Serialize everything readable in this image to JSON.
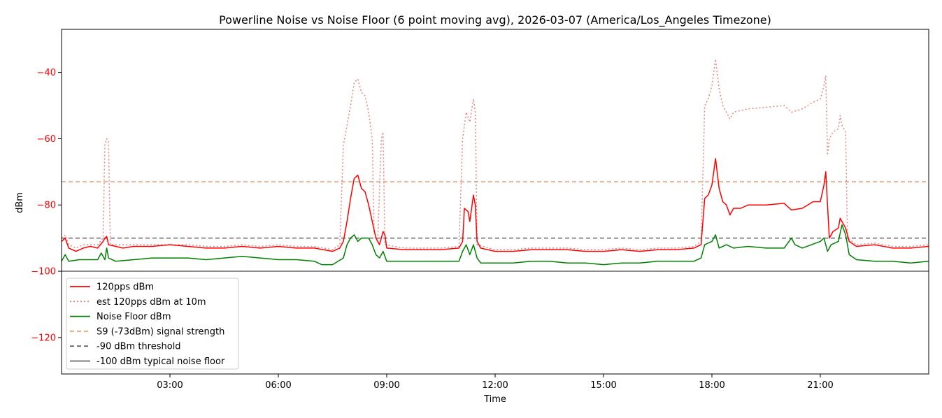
{
  "chart_data": {
    "type": "line",
    "title": "Powerline Noise vs Noise Floor (6 point moving avg), 2026-03-07 (America/Los_Angeles Timezone)",
    "xlabel": "Time",
    "ylabel": "dBm",
    "xlim_hours": [
      0,
      24
    ],
    "ylim": [
      -131,
      -27
    ],
    "x_ticks": [
      {
        "hour": 3,
        "label": "03:00"
      },
      {
        "hour": 6,
        "label": "06:00"
      },
      {
        "hour": 9,
        "label": "09:00"
      },
      {
        "hour": 12,
        "label": "12:00"
      },
      {
        "hour": 15,
        "label": "15:00"
      },
      {
        "hour": 18,
        "label": "18:00"
      },
      {
        "hour": 21,
        "label": "21:00"
      }
    ],
    "y_ticks": [
      {
        "value": -40,
        "label": "−40"
      },
      {
        "value": -60,
        "label": "−60"
      },
      {
        "value": -80,
        "label": "−80"
      },
      {
        "value": -100,
        "label": "−100"
      },
      {
        "value": -120,
        "label": "−120"
      }
    ],
    "ytick_color": "#ff0000",
    "legend_position": "lower-left",
    "grid": false,
    "series": [
      {
        "name": "120pps dBm",
        "color": "#ff0000",
        "style": "solid",
        "points": [
          [
            0.0,
            -91
          ],
          [
            0.1,
            -90
          ],
          [
            0.2,
            -93
          ],
          [
            0.4,
            -94
          ],
          [
            0.6,
            -93
          ],
          [
            0.8,
            -92.5
          ],
          [
            1.0,
            -93
          ],
          [
            1.15,
            -91
          ],
          [
            1.2,
            -90
          ],
          [
            1.25,
            -89.5
          ],
          [
            1.3,
            -92
          ],
          [
            1.5,
            -92.5
          ],
          [
            1.7,
            -93
          ],
          [
            2.0,
            -92.5
          ],
          [
            2.5,
            -92.5
          ],
          [
            3.0,
            -92
          ],
          [
            3.5,
            -92.5
          ],
          [
            4.0,
            -93
          ],
          [
            4.5,
            -93
          ],
          [
            5.0,
            -92.5
          ],
          [
            5.5,
            -93
          ],
          [
            6.0,
            -92.5
          ],
          [
            6.5,
            -93
          ],
          [
            7.0,
            -93
          ],
          [
            7.5,
            -94
          ],
          [
            7.7,
            -93
          ],
          [
            7.8,
            -91
          ],
          [
            7.9,
            -85
          ],
          [
            8.0,
            -78
          ],
          [
            8.1,
            -72
          ],
          [
            8.2,
            -71
          ],
          [
            8.3,
            -75
          ],
          [
            8.4,
            -76
          ],
          [
            8.5,
            -80
          ],
          [
            8.6,
            -85
          ],
          [
            8.7,
            -90
          ],
          [
            8.8,
            -92
          ],
          [
            8.9,
            -88
          ],
          [
            8.95,
            -89
          ],
          [
            9.0,
            -93
          ],
          [
            9.5,
            -93.5
          ],
          [
            10.0,
            -93.5
          ],
          [
            10.5,
            -93.5
          ],
          [
            11.0,
            -93
          ],
          [
            11.1,
            -91
          ],
          [
            11.15,
            -81
          ],
          [
            11.25,
            -82
          ],
          [
            11.3,
            -85
          ],
          [
            11.4,
            -77
          ],
          [
            11.45,
            -80
          ],
          [
            11.5,
            -91
          ],
          [
            11.6,
            -93
          ],
          [
            12.0,
            -94
          ],
          [
            12.5,
            -94
          ],
          [
            13.0,
            -93.5
          ],
          [
            13.5,
            -93.5
          ],
          [
            14.0,
            -93.5
          ],
          [
            14.5,
            -94
          ],
          [
            15.0,
            -94
          ],
          [
            15.5,
            -93.5
          ],
          [
            16.0,
            -94
          ],
          [
            16.5,
            -93.5
          ],
          [
            17.0,
            -93.5
          ],
          [
            17.5,
            -93
          ],
          [
            17.7,
            -92
          ],
          [
            17.8,
            -78
          ],
          [
            17.9,
            -77
          ],
          [
            18.0,
            -74
          ],
          [
            18.1,
            -66
          ],
          [
            18.2,
            -75
          ],
          [
            18.3,
            -79
          ],
          [
            18.4,
            -80
          ],
          [
            18.5,
            -83
          ],
          [
            18.6,
            -81
          ],
          [
            18.8,
            -81
          ],
          [
            19.0,
            -80
          ],
          [
            19.5,
            -80
          ],
          [
            20.0,
            -79.5
          ],
          [
            20.2,
            -81.5
          ],
          [
            20.5,
            -81
          ],
          [
            20.8,
            -79
          ],
          [
            21.0,
            -79
          ],
          [
            21.1,
            -74
          ],
          [
            21.15,
            -70
          ],
          [
            21.2,
            -80
          ],
          [
            21.25,
            -90
          ],
          [
            21.35,
            -88
          ],
          [
            21.5,
            -87
          ],
          [
            21.55,
            -84
          ],
          [
            21.6,
            -85
          ],
          [
            21.7,
            -87
          ],
          [
            21.8,
            -91
          ],
          [
            22.0,
            -92.5
          ],
          [
            22.5,
            -92
          ],
          [
            23.0,
            -93
          ],
          [
            23.5,
            -93
          ],
          [
            24.0,
            -92.5
          ]
        ]
      },
      {
        "name": "est 120pps dBm at 10m",
        "color": "#f08080",
        "style": "dotted",
        "points": [
          [
            0.0,
            -90
          ],
          [
            0.1,
            -89
          ],
          [
            0.2,
            -92
          ],
          [
            0.4,
            -93
          ],
          [
            0.6,
            -92
          ],
          [
            0.8,
            -92
          ],
          [
            1.0,
            -92
          ],
          [
            1.15,
            -90
          ],
          [
            1.2,
            -62
          ],
          [
            1.25,
            -60
          ],
          [
            1.3,
            -61
          ],
          [
            1.35,
            -92
          ],
          [
            1.5,
            -92
          ],
          [
            2.0,
            -92
          ],
          [
            2.5,
            -92
          ],
          [
            3.0,
            -92
          ],
          [
            3.5,
            -92
          ],
          [
            4.0,
            -92.5
          ],
          [
            4.5,
            -92.5
          ],
          [
            5.0,
            -92
          ],
          [
            5.5,
            -92.5
          ],
          [
            6.0,
            -92
          ],
          [
            6.5,
            -92.5
          ],
          [
            7.0,
            -92.5
          ],
          [
            7.5,
            -93.5
          ],
          [
            7.7,
            -92
          ],
          [
            7.8,
            -62
          ],
          [
            7.9,
            -56
          ],
          [
            8.0,
            -50
          ],
          [
            8.1,
            -43
          ],
          [
            8.2,
            -42
          ],
          [
            8.3,
            -46
          ],
          [
            8.4,
            -47
          ],
          [
            8.5,
            -52
          ],
          [
            8.6,
            -60
          ],
          [
            8.65,
            -88
          ],
          [
            8.75,
            -91
          ],
          [
            8.85,
            -60
          ],
          [
            8.9,
            -58
          ],
          [
            8.95,
            -92
          ],
          [
            9.5,
            -93
          ],
          [
            10.0,
            -93
          ],
          [
            10.5,
            -93
          ],
          [
            11.0,
            -92.5
          ],
          [
            11.1,
            -60
          ],
          [
            11.2,
            -52
          ],
          [
            11.3,
            -55
          ],
          [
            11.4,
            -48
          ],
          [
            11.45,
            -52
          ],
          [
            11.5,
            -92
          ],
          [
            12.0,
            -93.5
          ],
          [
            12.5,
            -93.5
          ],
          [
            13.0,
            -93
          ],
          [
            13.5,
            -93
          ],
          [
            14.0,
            -93
          ],
          [
            14.5,
            -93.5
          ],
          [
            15.0,
            -93.5
          ],
          [
            15.5,
            -93
          ],
          [
            16.0,
            -93.5
          ],
          [
            16.5,
            -93
          ],
          [
            17.0,
            -93
          ],
          [
            17.5,
            -92.5
          ],
          [
            17.7,
            -91
          ],
          [
            17.8,
            -50
          ],
          [
            17.9,
            -48
          ],
          [
            18.0,
            -44
          ],
          [
            18.1,
            -36
          ],
          [
            18.2,
            -45
          ],
          [
            18.3,
            -50
          ],
          [
            18.4,
            -52
          ],
          [
            18.5,
            -54
          ],
          [
            18.6,
            -52
          ],
          [
            18.8,
            -51.5
          ],
          [
            19.0,
            -51
          ],
          [
            19.5,
            -50.5
          ],
          [
            20.0,
            -50
          ],
          [
            20.2,
            -52
          ],
          [
            20.5,
            -51
          ],
          [
            20.8,
            -49
          ],
          [
            21.0,
            -48
          ],
          [
            21.1,
            -44
          ],
          [
            21.15,
            -41
          ],
          [
            21.2,
            -65
          ],
          [
            21.25,
            -60
          ],
          [
            21.35,
            -58
          ],
          [
            21.5,
            -57
          ],
          [
            21.55,
            -53
          ],
          [
            21.6,
            -56
          ],
          [
            21.7,
            -58
          ],
          [
            21.75,
            -90
          ],
          [
            22.0,
            -92
          ],
          [
            22.5,
            -91.5
          ],
          [
            23.0,
            -92.5
          ],
          [
            23.5,
            -92.5
          ],
          [
            24.0,
            -92
          ]
        ]
      },
      {
        "name": "Noise Floor dBm",
        "color": "#008000",
        "style": "solid",
        "points": [
          [
            0.0,
            -97
          ],
          [
            0.1,
            -95
          ],
          [
            0.2,
            -97
          ],
          [
            0.5,
            -96.5
          ],
          [
            1.0,
            -96.5
          ],
          [
            1.1,
            -94.5
          ],
          [
            1.2,
            -96.5
          ],
          [
            1.25,
            -93
          ],
          [
            1.3,
            -96
          ],
          [
            1.5,
            -97
          ],
          [
            2.0,
            -96.5
          ],
          [
            2.5,
            -96
          ],
          [
            3.0,
            -96
          ],
          [
            3.5,
            -96
          ],
          [
            4.0,
            -96.5
          ],
          [
            4.5,
            -96
          ],
          [
            5.0,
            -95.5
          ],
          [
            5.5,
            -96
          ],
          [
            6.0,
            -96.5
          ],
          [
            6.5,
            -96.5
          ],
          [
            7.0,
            -97
          ],
          [
            7.2,
            -98
          ],
          [
            7.5,
            -98
          ],
          [
            7.8,
            -96
          ],
          [
            7.9,
            -92
          ],
          [
            8.0,
            -90
          ],
          [
            8.1,
            -89
          ],
          [
            8.2,
            -91
          ],
          [
            8.3,
            -90
          ],
          [
            8.5,
            -90
          ],
          [
            8.6,
            -92
          ],
          [
            8.7,
            -95
          ],
          [
            8.8,
            -96
          ],
          [
            8.9,
            -94
          ],
          [
            9.0,
            -97
          ],
          [
            9.5,
            -97
          ],
          [
            10.0,
            -97
          ],
          [
            10.5,
            -97
          ],
          [
            11.0,
            -97
          ],
          [
            11.1,
            -94
          ],
          [
            11.2,
            -92
          ],
          [
            11.3,
            -95
          ],
          [
            11.4,
            -92
          ],
          [
            11.5,
            -96
          ],
          [
            11.6,
            -97.5
          ],
          [
            12.0,
            -97.5
          ],
          [
            12.5,
            -97.5
          ],
          [
            13.0,
            -97
          ],
          [
            13.5,
            -97
          ],
          [
            14.0,
            -97.5
          ],
          [
            14.5,
            -97.5
          ],
          [
            15.0,
            -98
          ],
          [
            15.5,
            -97.5
          ],
          [
            16.0,
            -97.5
          ],
          [
            16.5,
            -97
          ],
          [
            17.0,
            -97
          ],
          [
            17.5,
            -97
          ],
          [
            17.7,
            -96
          ],
          [
            17.8,
            -92
          ],
          [
            18.0,
            -91
          ],
          [
            18.1,
            -89
          ],
          [
            18.2,
            -93
          ],
          [
            18.4,
            -92
          ],
          [
            18.6,
            -93
          ],
          [
            19.0,
            -92.5
          ],
          [
            19.5,
            -93
          ],
          [
            20.0,
            -93
          ],
          [
            20.2,
            -90
          ],
          [
            20.3,
            -92
          ],
          [
            20.5,
            -93
          ],
          [
            21.0,
            -91
          ],
          [
            21.1,
            -90
          ],
          [
            21.2,
            -94
          ],
          [
            21.3,
            -92
          ],
          [
            21.5,
            -91
          ],
          [
            21.6,
            -86
          ],
          [
            21.7,
            -89
          ],
          [
            21.8,
            -95
          ],
          [
            22.0,
            -96.5
          ],
          [
            22.5,
            -97
          ],
          [
            23.0,
            -97
          ],
          [
            23.5,
            -97.5
          ],
          [
            24.0,
            -97
          ]
        ]
      }
    ],
    "reference_lines": [
      {
        "name": "S9 (-73dBm) signal strength",
        "value": -73,
        "color": "#e8a070",
        "style": "dashed"
      },
      {
        "name": "-90 dBm threshold",
        "value": -90,
        "color": "#666666",
        "style": "dashed"
      },
      {
        "name": "-100 dBm typical noise floor",
        "value": -100,
        "color": "#666666",
        "style": "solid"
      }
    ]
  }
}
